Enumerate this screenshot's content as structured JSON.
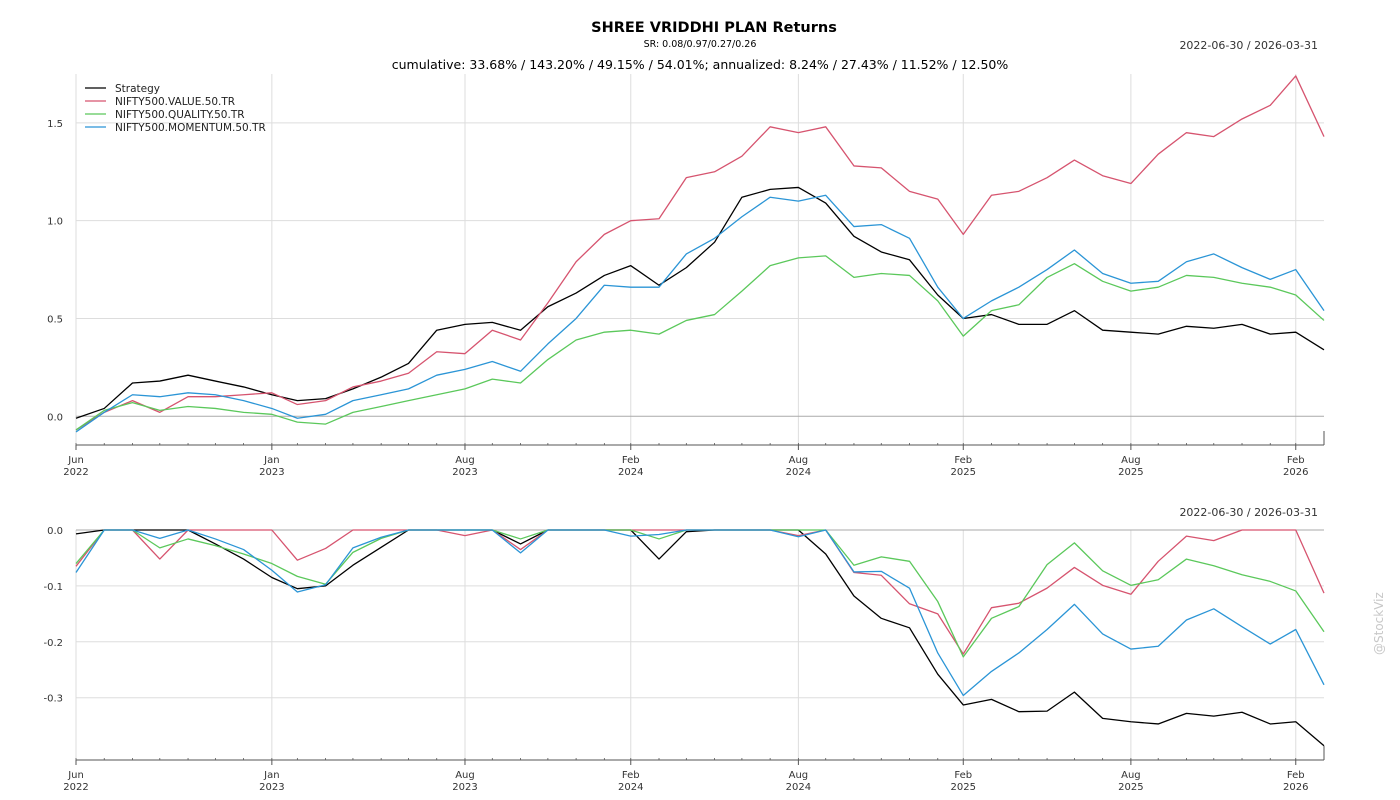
{
  "header": {
    "title": "SHREE VRIDDHI PLAN Returns",
    "sr_line": "SR: 0.08/0.97/0.27/0.26",
    "subtitle": "cumulative: 33.68% / 143.20% / 49.15% / 54.01%; annualized: 8.24% / 27.43% / 11.52% / 12.50%",
    "date_range_top": "2022-06-30 / 2026-03-31",
    "date_range_bottom": "2022-06-30 / 2026-03-31"
  },
  "watermark": "@StockViz",
  "colors": {
    "Strategy": "#000000",
    "NIFTY500.VALUE.50.TR": "#d6546f",
    "NIFTY500.QUALITY.50.TR": "#5bc85b",
    "NIFTY500.MOMENTUM.50.TR": "#2b95d6",
    "grid": "#dddddd",
    "axis": "#555555"
  },
  "chart_data": [
    {
      "type": "line",
      "title": "cumulative returns",
      "legend_position": "top-left",
      "grid": true,
      "ylim": [
        -0.06,
        1.75
      ],
      "yticks": [
        "0.0",
        "0.5",
        "1.0",
        "1.5"
      ],
      "xlim": [
        "2022-06-30",
        "2026-03-31"
      ],
      "xticks": [
        {
          "month": "Jun",
          "year": "2022",
          "date": "2022-06-30"
        },
        {
          "month": "Jan",
          "year": "2023",
          "date": "2023-01-31"
        },
        {
          "month": "Aug",
          "year": "2023",
          "date": "2023-08-31"
        },
        {
          "month": "Feb",
          "year": "2024",
          "date": "2024-02-29"
        },
        {
          "month": "Aug",
          "year": "2024",
          "date": "2024-08-31"
        },
        {
          "month": "Feb",
          "year": "2025",
          "date": "2025-02-28"
        },
        {
          "month": "Aug",
          "year": "2025",
          "date": "2025-08-31"
        },
        {
          "month": "Feb",
          "year": "2026",
          "date": "2026-02-28"
        }
      ],
      "x": [
        "2022-06-30",
        "2022-07-31",
        "2022-08-31",
        "2022-09-30",
        "2022-10-31",
        "2022-11-30",
        "2022-12-31",
        "2023-01-31",
        "2023-02-28",
        "2023-03-31",
        "2023-04-30",
        "2023-05-31",
        "2023-06-30",
        "2023-07-31",
        "2023-08-31",
        "2023-09-30",
        "2023-10-31",
        "2023-11-30",
        "2023-12-31",
        "2024-01-31",
        "2024-02-29",
        "2024-03-31",
        "2024-04-30",
        "2024-05-31",
        "2024-06-30",
        "2024-07-31",
        "2024-08-31",
        "2024-09-30",
        "2024-10-31",
        "2024-11-30",
        "2024-12-31",
        "2025-01-31",
        "2025-02-28",
        "2025-03-31",
        "2025-04-30",
        "2025-05-31",
        "2025-06-30",
        "2025-07-31",
        "2025-08-31",
        "2025-09-30",
        "2025-10-31",
        "2025-11-30",
        "2025-12-31",
        "2026-01-31",
        "2026-02-28",
        "2026-03-31"
      ],
      "series": [
        {
          "name": "Strategy",
          "values": [
            -0.01,
            0.04,
            0.17,
            0.18,
            0.21,
            0.18,
            0.15,
            0.11,
            0.08,
            0.09,
            0.14,
            0.2,
            0.27,
            0.44,
            0.47,
            0.48,
            0.44,
            0.56,
            0.63,
            0.72,
            0.77,
            0.67,
            0.76,
            0.89,
            1.12,
            1.16,
            1.17,
            1.09,
            0.92,
            0.84,
            0.8,
            0.62,
            0.5,
            0.52,
            0.47,
            0.47,
            0.54,
            0.44,
            0.43,
            0.42,
            0.46,
            0.45,
            0.47,
            0.42,
            0.43,
            0.34
          ]
        },
        {
          "name": "NIFTY500.VALUE.50.TR",
          "values": [
            -0.07,
            0.02,
            0.08,
            0.02,
            0.1,
            0.1,
            0.11,
            0.12,
            0.06,
            0.08,
            0.15,
            0.18,
            0.22,
            0.33,
            0.32,
            0.44,
            0.39,
            0.58,
            0.79,
            0.93,
            1.0,
            1.01,
            1.22,
            1.25,
            1.33,
            1.48,
            1.45,
            1.48,
            1.28,
            1.27,
            1.15,
            1.11,
            0.93,
            1.13,
            1.15,
            1.22,
            1.31,
            1.23,
            1.19,
            1.34,
            1.45,
            1.43,
            1.52,
            1.59,
            1.74,
            1.43
          ]
        },
        {
          "name": "NIFTY500.QUALITY.50.TR",
          "values": [
            -0.07,
            0.03,
            0.07,
            0.03,
            0.05,
            0.04,
            0.02,
            0.01,
            -0.03,
            -0.04,
            0.02,
            0.05,
            0.08,
            0.11,
            0.14,
            0.19,
            0.17,
            0.29,
            0.39,
            0.43,
            0.44,
            0.42,
            0.49,
            0.52,
            0.64,
            0.77,
            0.81,
            0.82,
            0.71,
            0.73,
            0.72,
            0.59,
            0.41,
            0.54,
            0.57,
            0.71,
            0.78,
            0.69,
            0.64,
            0.66,
            0.72,
            0.71,
            0.68,
            0.66,
            0.62,
            0.49
          ]
        },
        {
          "name": "NIFTY500.MOMENTUM.50.TR",
          "values": [
            -0.08,
            0.02,
            0.11,
            0.1,
            0.12,
            0.11,
            0.08,
            0.04,
            -0.01,
            0.01,
            0.08,
            0.11,
            0.14,
            0.21,
            0.24,
            0.28,
            0.23,
            0.37,
            0.5,
            0.67,
            0.66,
            0.66,
            0.83,
            0.91,
            1.02,
            1.12,
            1.1,
            1.13,
            0.97,
            0.98,
            0.91,
            0.66,
            0.5,
            0.59,
            0.66,
            0.75,
            0.85,
            0.73,
            0.68,
            0.69,
            0.79,
            0.83,
            0.76,
            0.7,
            0.75,
            0.54
          ]
        }
      ]
    },
    {
      "type": "line",
      "title": "drawdown",
      "legend_position": "none",
      "grid": true,
      "ylim": [
        -0.39,
        0.0
      ],
      "yticks": [
        "0.0",
        "-0.1",
        "-0.2",
        "-0.3"
      ],
      "xlim": [
        "2022-06-30",
        "2026-03-31"
      ],
      "x": [
        "2022-06-30",
        "2022-07-31",
        "2022-08-31",
        "2022-09-30",
        "2022-10-31",
        "2022-11-30",
        "2022-12-31",
        "2023-01-31",
        "2023-02-28",
        "2023-03-31",
        "2023-04-30",
        "2023-05-31",
        "2023-06-30",
        "2023-07-31",
        "2023-08-31",
        "2023-09-30",
        "2023-10-31",
        "2023-11-30",
        "2023-12-31",
        "2024-01-31",
        "2024-02-29",
        "2024-03-31",
        "2024-04-30",
        "2024-05-31",
        "2024-06-30",
        "2024-07-31",
        "2024-08-31",
        "2024-09-30",
        "2024-10-31",
        "2024-11-30",
        "2024-12-31",
        "2025-01-31",
        "2025-02-28",
        "2025-03-31",
        "2025-04-30",
        "2025-05-31",
        "2025-06-30",
        "2025-07-31",
        "2025-08-31",
        "2025-09-30",
        "2025-10-31",
        "2025-11-30",
        "2025-12-31",
        "2026-01-31",
        "2026-02-28",
        "2026-03-31"
      ],
      "series": [
        {
          "name": "Strategy",
          "values": [
            -0.007,
            0.0,
            0.0,
            0.0,
            0.0,
            -0.025,
            -0.052,
            -0.085,
            -0.105,
            -0.1,
            -0.063,
            -0.031,
            0.0,
            0.0,
            0.0,
            0.0,
            -0.025,
            0.0,
            0.0,
            0.0,
            0.0,
            -0.052,
            -0.003,
            0.0,
            0.0,
            0.0,
            0.0,
            -0.043,
            -0.118,
            -0.158,
            -0.175,
            -0.258,
            -0.313,
            -0.303,
            -0.325,
            -0.324,
            -0.29,
            -0.337,
            -0.343,
            -0.347,
            -0.328,
            -0.333,
            -0.326,
            -0.347,
            -0.343,
            -0.386
          ]
        },
        {
          "name": "NIFTY500.VALUE.50.TR",
          "values": [
            -0.065,
            0.0,
            0.0,
            -0.052,
            0.0,
            0.0,
            0.0,
            0.0,
            -0.054,
            -0.033,
            0.0,
            0.0,
            0.0,
            0.0,
            -0.01,
            0.0,
            -0.035,
            0.0,
            0.0,
            0.0,
            0.0,
            0.0,
            0.0,
            0.0,
            0.0,
            0.0,
            -0.01,
            0.0,
            -0.076,
            -0.081,
            -0.132,
            -0.15,
            -0.222,
            -0.139,
            -0.131,
            -0.104,
            -0.067,
            -0.099,
            -0.115,
            -0.056,
            -0.011,
            -0.019,
            0.0,
            0.0,
            0.0,
            -0.113
          ]
        },
        {
          "name": "NIFTY500.QUALITY.50.TR",
          "values": [
            -0.06,
            0.0,
            0.0,
            -0.032,
            -0.016,
            -0.028,
            -0.043,
            -0.06,
            -0.083,
            -0.097,
            -0.04,
            -0.015,
            0.0,
            0.0,
            0.0,
            0.0,
            -0.016,
            0.0,
            0.0,
            0.0,
            0.0,
            -0.016,
            0.0,
            0.0,
            0.0,
            0.0,
            0.0,
            0.0,
            -0.063,
            -0.048,
            -0.056,
            -0.128,
            -0.227,
            -0.158,
            -0.137,
            -0.062,
            -0.023,
            -0.073,
            -0.099,
            -0.089,
            -0.052,
            -0.064,
            -0.08,
            -0.092,
            -0.109,
            -0.182
          ]
        },
        {
          "name": "NIFTY500.MOMENTUM.50.TR",
          "values": [
            -0.076,
            0.0,
            0.0,
            -0.015,
            0.0,
            -0.016,
            -0.035,
            -0.072,
            -0.111,
            -0.098,
            -0.032,
            -0.013,
            0.0,
            0.0,
            0.0,
            0.0,
            -0.041,
            0.0,
            0.0,
            0.0,
            -0.011,
            -0.008,
            0.0,
            0.0,
            0.0,
            0.0,
            -0.012,
            0.0,
            -0.075,
            -0.074,
            -0.104,
            -0.22,
            -0.296,
            -0.253,
            -0.22,
            -0.178,
            -0.133,
            -0.186,
            -0.213,
            -0.208,
            -0.161,
            -0.141,
            -0.173,
            -0.204,
            -0.178,
            -0.277
          ]
        }
      ]
    }
  ]
}
